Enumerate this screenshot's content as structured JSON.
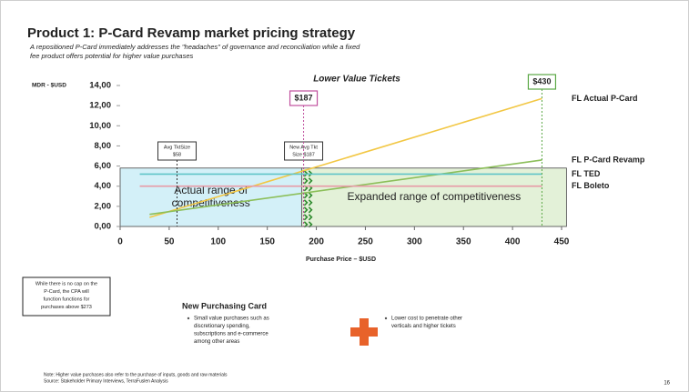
{
  "title": "Product 1: P-Card Revamp market pricing strategy",
  "subtitle": [
    "A repositioned P-Card immediately addresses the \"headaches\" of governance and reconciliation while a fixed",
    "fee product offers potential for higher value purchases"
  ],
  "chart_data": {
    "type": "line",
    "ylabel": "MDR - $USD",
    "xlabel": "Purchase Price – $USD",
    "annotation": "Lower Value Tickets",
    "xlim": [
      0,
      450
    ],
    "xticks": [
      0,
      50,
      100,
      150,
      200,
      250,
      300,
      350,
      400,
      450
    ],
    "ylim": [
      0,
      14
    ],
    "yticks": [
      {
        "value": 0,
        "label": "0,00"
      },
      {
        "value": 2,
        "label": "2,00"
      },
      {
        "value": 4,
        "label": "4,00"
      },
      {
        "value": 6,
        "label": "6,00"
      },
      {
        "value": 8,
        "label": "8,00"
      },
      {
        "value": 10,
        "label": "10,00"
      },
      {
        "value": 12,
        "label": "12,00"
      },
      {
        "value": 14,
        "label": "14,00"
      }
    ],
    "series": [
      {
        "name": "FL Actual P-Card",
        "color": "#f2c744",
        "x": [
          30,
          430
        ],
        "values": [
          0.9,
          12.7
        ]
      },
      {
        "name": "FL P-Card Revamp",
        "color": "#8cbf5a",
        "x": [
          30,
          430
        ],
        "values": [
          1.2,
          6.6
        ]
      },
      {
        "name": "FL TED",
        "color": "#5fc4c8",
        "x": [
          20,
          430
        ],
        "values": [
          5.2,
          5.2
        ]
      },
      {
        "name": "FL Boleto",
        "color": "#e79aa6",
        "x": [
          20,
          430
        ],
        "values": [
          4.0,
          4.0
        ]
      }
    ],
    "regions": [
      {
        "label": [
          "Actual range of",
          "competitiveness"
        ],
        "x": [
          0,
          185
        ],
        "top": 5.8,
        "color": "#d3f0f8"
      },
      {
        "label": [
          "Expanded range of competitiveness"
        ],
        "x": [
          185,
          455
        ],
        "top": 5.8,
        "color": "#e3f1d8"
      }
    ],
    "markers": [
      {
        "kind": "ticket",
        "x": 58,
        "label": [
          "Avg TktSize",
          "$58"
        ]
      },
      {
        "kind": "ticket",
        "x": 187,
        "label": [
          "New Avg Tkt",
          "Size $187"
        ]
      },
      {
        "kind": "price",
        "x": 187,
        "label": [
          "$187"
        ],
        "color": "#c0509e"
      },
      {
        "kind": "price",
        "x": 430,
        "label": [
          "$430"
        ],
        "color": "#5aa845"
      }
    ]
  },
  "note_box": [
    "While there is no cap on the",
    "P-Card, the CPA will",
    "function functions for",
    "purchases above $273"
  ],
  "card": {
    "title": "New Purchasing Card",
    "bullets": [
      [
        "Small value purchases such as",
        "discretionary spending,",
        "subscriptions and e-commerce",
        "among other areas"
      ],
      [
        "Lower cost to penetrate other",
        "verticals and higher tickets"
      ]
    ]
  },
  "footnote": [
    "Note: Higher value purchases also refer to the purchase of inputs, goods and raw materials",
    "Source: Stakeholder Primary Interviews, TerraFuslen Analysis"
  ],
  "page_number": "16"
}
